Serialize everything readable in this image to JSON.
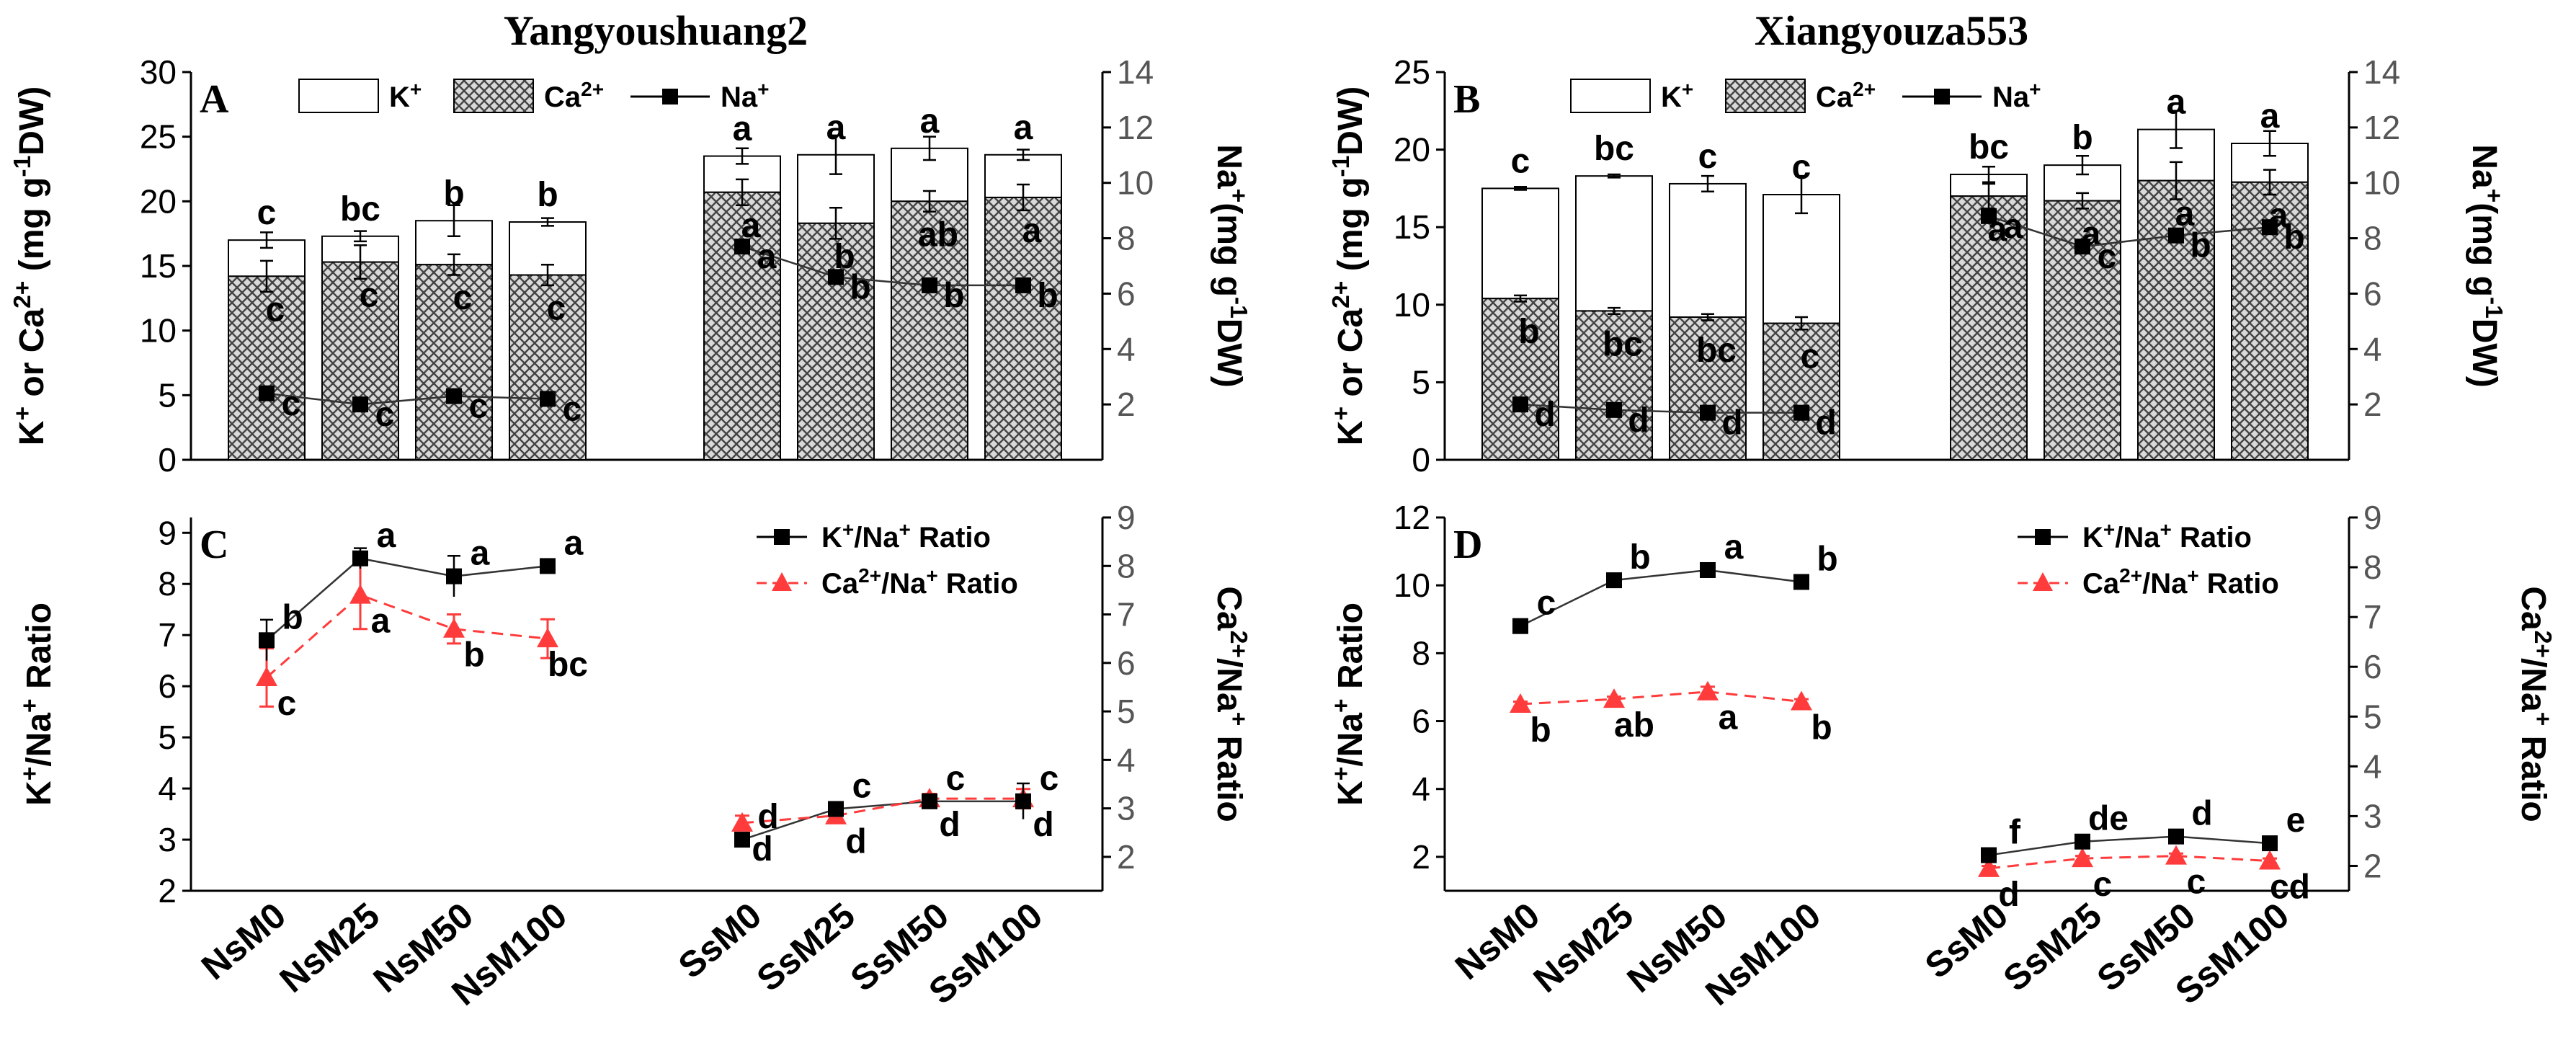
{
  "chart_data": [
    {
      "panel": "A",
      "type": "bar",
      "title": "Yangyoushuang2",
      "categories": [
        "NsM0",
        "NsM25",
        "NsM50",
        "NsM100",
        "SsM0",
        "SsM25",
        "SsM50",
        "SsM100"
      ],
      "ylabel_left": "K⁺ or Ca²⁺ (mg g⁻¹DW)",
      "ylabel_right": "Na⁺(mg g⁻¹DW)",
      "ylim_left": [
        0,
        30
      ],
      "yticks_left": [
        0,
        5,
        10,
        15,
        20,
        25,
        30
      ],
      "ylim_right": [
        0,
        14
      ],
      "yticks_right": [
        2,
        4,
        6,
        8,
        10,
        12,
        14
      ],
      "legend": [
        "K⁺",
        "Ca²⁺",
        "Na⁺"
      ],
      "series": [
        {
          "name": "Ca²⁺",
          "axis": "left",
          "values": [
            14.2,
            15.3,
            15.1,
            14.3,
            20.7,
            18.3,
            20.0,
            20.3
          ],
          "err": [
            1.2,
            1.3,
            0.8,
            0.8,
            1.0,
            1.2,
            0.8,
            1.0
          ],
          "letters": [
            "c",
            "c",
            "c",
            "c",
            "a",
            "b",
            "ab",
            "a"
          ]
        },
        {
          "name": "K⁺ + Ca²⁺ (bar top)",
          "axis": "left",
          "values": [
            17.0,
            17.3,
            18.5,
            18.4,
            23.5,
            23.6,
            24.1,
            23.6
          ],
          "err": [
            0.6,
            0.4,
            1.2,
            0.3,
            0.6,
            1.5,
            0.9,
            0.4
          ],
          "letters": [
            "c",
            "bc",
            "b",
            "b",
            "a",
            "a",
            "a",
            "a"
          ]
        },
        {
          "name": "Na⁺",
          "axis": "right",
          "values": [
            2.4,
            2.0,
            2.3,
            2.2,
            7.7,
            6.6,
            6.3,
            6.3
          ],
          "err": [
            0.1,
            0.1,
            0.1,
            0.1,
            0.2,
            0.2,
            0.3,
            0.4
          ],
          "letters": [
            "c",
            "c",
            "c",
            "c",
            "a",
            "b",
            "b",
            "b"
          ]
        }
      ]
    },
    {
      "panel": "B",
      "type": "bar",
      "title": "Xiangyouza553",
      "categories": [
        "NsM0",
        "NsM25",
        "NsM50",
        "NsM100",
        "SsM0",
        "SsM25",
        "SsM50",
        "SsM100"
      ],
      "ylabel_left": "K⁺ or Ca²⁺ (mg g⁻¹DW)",
      "ylabel_right": "Na⁺(mg g⁻¹DW)",
      "ylim_left": [
        0,
        25
      ],
      "yticks_left": [
        0,
        5,
        10,
        15,
        20,
        25
      ],
      "ylim_right": [
        0,
        14
      ],
      "yticks_right": [
        2,
        4,
        6,
        8,
        10,
        12,
        14
      ],
      "legend": [
        "K⁺",
        "Ca²⁺",
        "Na⁺"
      ],
      "series": [
        {
          "name": "Ca²⁺",
          "axis": "left",
          "values": [
            10.4,
            9.6,
            9.2,
            8.8,
            17.0,
            16.7,
            18.0,
            17.9
          ],
          "err": [
            0.2,
            0.2,
            0.2,
            0.4,
            0.8,
            0.5,
            1.2,
            0.8
          ],
          "letters": [
            "b",
            "bc",
            "bc",
            "c",
            "a",
            "a",
            "a",
            "a"
          ]
        },
        {
          "name": "K⁺ + Ca²⁺ (bar top)",
          "axis": "left",
          "values": [
            17.5,
            18.3,
            17.8,
            17.1,
            18.4,
            19.0,
            21.3,
            20.4
          ],
          "err": [
            0.1,
            0.1,
            0.5,
            1.2,
            0.5,
            0.6,
            1.2,
            0.8
          ],
          "letters": [
            "c",
            "bc",
            "c",
            "c",
            "bc",
            "b",
            "a",
            "a"
          ]
        },
        {
          "name": "Na⁺",
          "axis": "right",
          "values": [
            2.0,
            1.8,
            1.7,
            1.7,
            8.8,
            7.7,
            8.1,
            8.4
          ],
          "err": [
            0.1,
            0.1,
            0.1,
            0.1,
            0.2,
            0.2,
            0.2,
            0.2
          ],
          "letters": [
            "d",
            "d",
            "d",
            "d",
            "a",
            "c",
            "b",
            "b"
          ]
        }
      ]
    },
    {
      "panel": "C",
      "type": "line",
      "categories": [
        "NsM0",
        "NsM25",
        "NsM50",
        "NsM100",
        "SsM0",
        "SsM25",
        "SsM50",
        "SsM100"
      ],
      "ylabel_left": "K⁺/Na⁺ Ratio",
      "ylabel_right": "Ca²⁺/Na⁺ Ratio",
      "ylim_left": [
        2,
        9.3
      ],
      "yticks_left": [
        2,
        3,
        4,
        5,
        6,
        7,
        8,
        9
      ],
      "ylim_right": [
        1.3,
        9
      ],
      "yticks_right": [
        2,
        3,
        4,
        5,
        6,
        7,
        8,
        9
      ],
      "legend": [
        "K⁺/Na⁺ Ratio",
        "Ca²⁺/Na⁺ Ratio"
      ],
      "series": [
        {
          "name": "K⁺/Na⁺ Ratio",
          "axis": "left",
          "values": [
            6.9,
            8.5,
            8.15,
            8.35,
            3.0,
            3.6,
            3.75,
            3.75
          ],
          "err": [
            0.4,
            0.2,
            0.4,
            0.08,
            0.12,
            0.08,
            0.1,
            0.35
          ],
          "letters": [
            "b",
            "a",
            "a",
            "a",
            "d",
            "c",
            "c",
            "c"
          ]
        },
        {
          "name": "Ca²⁺/Na⁺ Ratio",
          "axis": "right",
          "values": [
            5.7,
            7.4,
            6.7,
            6.5,
            2.7,
            2.85,
            3.2,
            3.2
          ],
          "err": [
            0.6,
            0.7,
            0.3,
            0.4,
            0.15,
            0.08,
            0.1,
            0.2
          ],
          "letters": [
            "c",
            "a",
            "b",
            "bc",
            "d",
            "d",
            "d",
            "d"
          ]
        }
      ]
    },
    {
      "panel": "D",
      "type": "line",
      "categories": [
        "NsM0",
        "NsM25",
        "NsM50",
        "NsM100",
        "SsM0",
        "SsM25",
        "SsM50",
        "SsM100"
      ],
      "ylabel_left": "K⁺/Na⁺ Ratio",
      "ylabel_right": "Ca²⁺/Na⁺ Ratio",
      "ylim_left": [
        1,
        12
      ],
      "yticks_left": [
        2,
        4,
        6,
        8,
        10,
        12
      ],
      "ylim_right": [
        1.5,
        9
      ],
      "yticks_right": [
        2,
        3,
        4,
        5,
        6,
        7,
        8,
        9
      ],
      "legend": [
        "K⁺/Na⁺ Ratio",
        "Ca²⁺/Na⁺ Ratio"
      ],
      "series": [
        {
          "name": "K⁺/Na⁺ Ratio",
          "axis": "left",
          "values": [
            8.8,
            10.15,
            10.45,
            10.1,
            2.05,
            2.45,
            2.6,
            2.4
          ],
          "err": [
            0.1,
            0.1,
            0.1,
            0.1,
            0.1,
            0.1,
            0.1,
            0.1
          ],
          "letters": [
            "c",
            "b",
            "a",
            "b",
            "f",
            "de",
            "d",
            "e"
          ]
        },
        {
          "name": "Ca²⁺/Na⁺ Ratio",
          "axis": "right",
          "values": [
            5.25,
            5.35,
            5.5,
            5.3,
            1.95,
            2.15,
            2.2,
            2.1
          ],
          "err": [
            0.05,
            0.05,
            0.1,
            0.05,
            0.05,
            0.05,
            0.05,
            0.05
          ],
          "letters": [
            "b",
            "ab",
            "a",
            "b",
            "d",
            "c",
            "c",
            "cd"
          ]
        }
      ]
    }
  ]
}
